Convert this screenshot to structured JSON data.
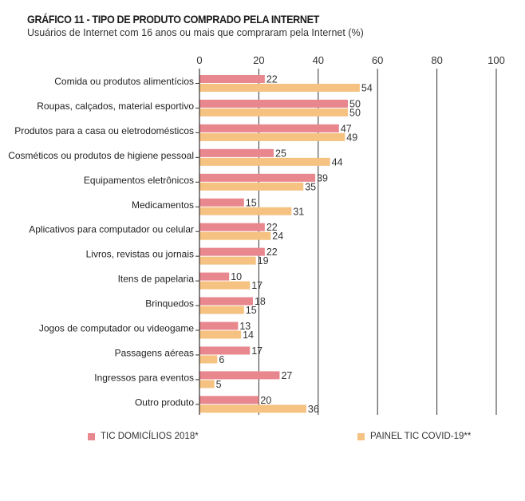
{
  "header": {
    "title": "GRÁFICO 11 - TIPO DE PRODUTO COMPRADO PELA INTERNET",
    "subtitle": "Usuários de Internet com 16 anos ou mais que compraram pela Internet (%)"
  },
  "colors": {
    "series_a": "#e8878e",
    "series_b": "#f5c282",
    "axis": "#333333",
    "grid": "#333333"
  },
  "chart_data": {
    "type": "bar",
    "orientation": "horizontal",
    "title": "GRÁFICO 11 - TIPO DE PRODUTO COMPRADO PELA INTERNET",
    "subtitle": "Usuários de Internet com 16 anos ou mais que compraram pela Internet (%)",
    "xlim": [
      0,
      100
    ],
    "xticks": [
      0,
      20,
      40,
      60,
      80,
      100
    ],
    "grid": true,
    "legend_position": "bottom",
    "categories": [
      "Comida ou produtos alimentícios",
      "Roupas, calçados, material esportivo",
      "Produtos para a casa ou eletrodomésticos",
      "Cosméticos ou produtos de higiene pessoal",
      "Equipamentos eletrônicos",
      "Medicamentos",
      "Aplicativos para computador ou celular",
      "Livros, revistas ou jornais",
      "Itens de papelaria",
      "Brinquedos",
      "Jogos de computador ou videogame",
      "Passagens aéreas",
      "Ingressos para eventos",
      "Outro produto"
    ],
    "series": [
      {
        "name": "TIC DOMICÍLIOS 2018*",
        "values": [
          22,
          50,
          47,
          25,
          39,
          15,
          22,
          22,
          10,
          18,
          13,
          17,
          27,
          20
        ]
      },
      {
        "name": "PAINEL TIC COVID-19**",
        "values": [
          54,
          50,
          49,
          44,
          35,
          31,
          24,
          19,
          17,
          15,
          14,
          6,
          5,
          36
        ]
      }
    ]
  }
}
